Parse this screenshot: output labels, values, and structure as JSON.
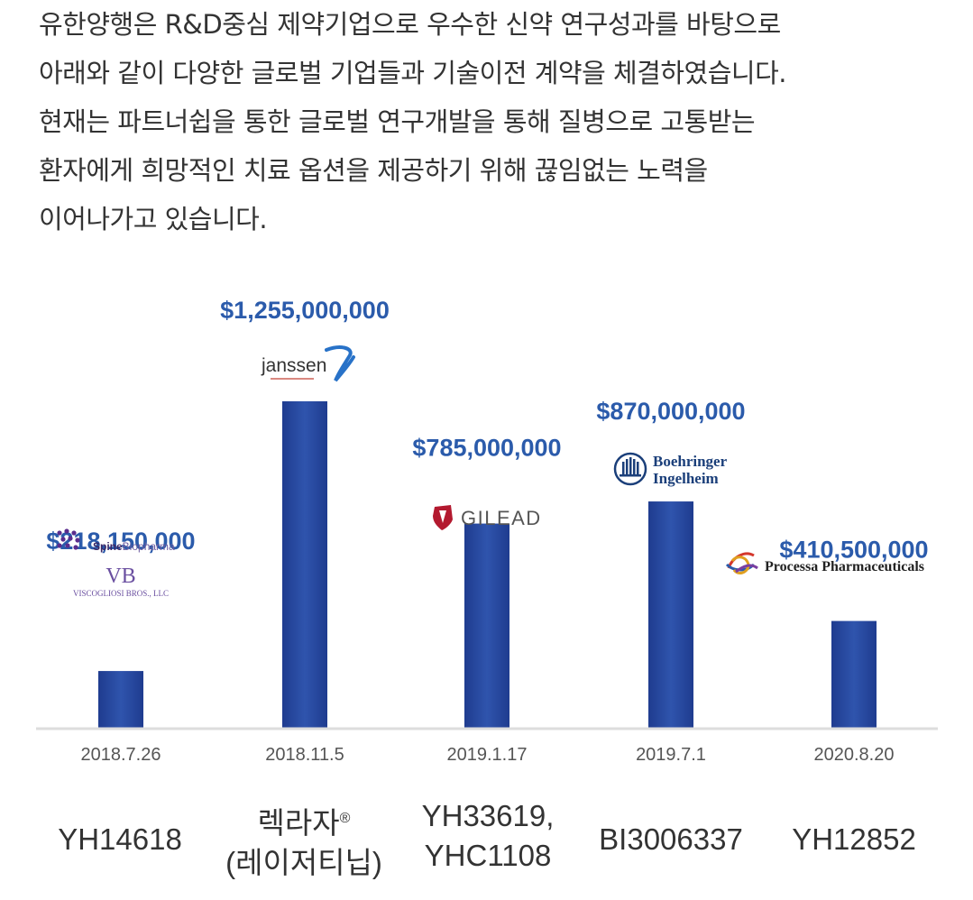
{
  "intro": {
    "lines": [
      "유한양행은 R&D중심 제약기업으로 우수한 신약 연구성과를 바탕으로",
      "아래와 같이 다양한 글로벌 기업들과 기술이전 계약을 체결하였습니다.",
      "현재는 파트너쉽을 통한 글로벌 연구개발을 통해 질병으로 고통받는",
      "환자에게 희망적인 치료 옵션을 제공하기 위해 끊임없는 노력을",
      "이어나가고 있습니다."
    ]
  },
  "colors": {
    "bar": "#2a4aa0",
    "value_label": "#2b5bab",
    "axis_line": "#dddddd",
    "text": "#333333",
    "date_text": "#555555"
  },
  "chart_data": {
    "type": "bar",
    "categories": [
      "2018.7.26",
      "2018.11.5",
      "2019.1.17",
      "2019.7.1",
      "2020.8.20"
    ],
    "values": [
      218150000,
      1255000000,
      785000000,
      870000000,
      410500000
    ],
    "value_labels": [
      "$218,150,000",
      "$1,255,000,000",
      "$785,000,000",
      "$870,000,000",
      "$410,500,000"
    ],
    "partners": [
      [
        "Spine Biopharma",
        "Viscogliosi Bros., LLC"
      ],
      [
        "Janssen"
      ],
      [
        "Gilead"
      ],
      [
        "Boehringer Ingelheim"
      ],
      [
        "Processa Pharmaceuticals"
      ]
    ],
    "deals": [
      {
        "name": "YH14618",
        "note": ""
      },
      {
        "name": "렉라자",
        "mark": "®",
        "note": "(레이저티닙)"
      },
      {
        "name": "YH33619,",
        "note": "YHC1108"
      },
      {
        "name": "BI3006337",
        "note": ""
      },
      {
        "name": "YH12852",
        "note": ""
      }
    ],
    "title": "",
    "xlabel": "",
    "ylabel": "",
    "grid": false
  },
  "logos": {
    "spine_word1": "Spine",
    "spine_word2": "Biopharma",
    "vb_mark": "VB",
    "vb_name": "VISCOGLIOSI BROS., LLC",
    "janssen": "janssen",
    "gilead": "GILEAD",
    "boehringer_1": "Boehringer",
    "boehringer_2": "Ingelheim",
    "processa": "Processa Pharmaceuticals"
  }
}
